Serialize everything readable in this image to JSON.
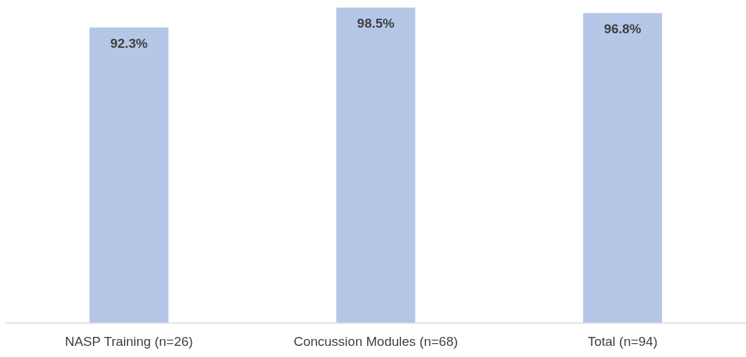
{
  "chart_data": {
    "type": "bar",
    "categories": [
      "NASP Training (n=26)",
      "Concussion Modules (n=68)",
      "Total (n=94)"
    ],
    "values": [
      92.3,
      98.5,
      96.8
    ],
    "value_labels": [
      "92.3%",
      "98.5%",
      "96.8%"
    ],
    "color": "#b4c7e7",
    "ylim": [
      0,
      100
    ],
    "tick_labels": "x"
  }
}
